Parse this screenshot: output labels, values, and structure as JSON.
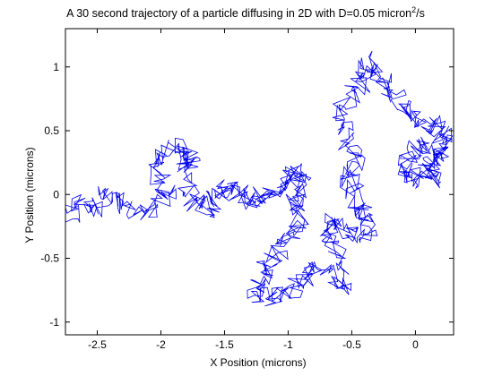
{
  "chart_data": {
    "type": "line",
    "title": "A 30 second trajectory of a particle diffusing in 2D with D=0.05 micron",
    "title_superscript": "2",
    "title_suffix": "/s",
    "xlabel": "X Position (microns)",
    "ylabel": "Y Position (microns)",
    "xlim": [
      -2.75,
      0.3
    ],
    "ylim": [
      -1.1,
      1.3
    ],
    "xticks": [
      -2.5,
      -2,
      -1.5,
      -1,
      -0.5,
      0
    ],
    "xtick_labels": [
      "-2.5",
      "-2",
      "-1.5",
      "-1",
      "-0.5",
      "0"
    ],
    "yticks": [
      -1,
      -0.5,
      0,
      0.5,
      1
    ],
    "ytick_labels": [
      "-1",
      "-0.5",
      "0",
      "0.5",
      "1"
    ],
    "grid": false,
    "line_color": "#0000ee",
    "series": [
      {
        "points_approx": [
          [
            -2.75,
            -0.18
          ],
          [
            -2.62,
            -0.05
          ],
          [
            -2.5,
            -0.12
          ],
          [
            -2.4,
            0.02
          ],
          [
            -2.3,
            -0.08
          ],
          [
            -2.15,
            -0.15
          ],
          [
            -2.0,
            -0.05
          ],
          [
            -1.95,
            0.05
          ],
          [
            -2.05,
            0.18
          ],
          [
            -1.95,
            0.33
          ],
          [
            -1.85,
            0.38
          ],
          [
            -1.8,
            0.22
          ],
          [
            -1.75,
            0.32
          ],
          [
            -1.8,
            0.1
          ],
          [
            -1.75,
            -0.05
          ],
          [
            -1.65,
            -0.1
          ],
          [
            -1.55,
            -0.02
          ],
          [
            -1.5,
            0.05
          ],
          [
            -1.4,
            0.02
          ],
          [
            -1.3,
            -0.05
          ],
          [
            -1.2,
            0.0
          ],
          [
            -1.1,
            0.03
          ],
          [
            -1.0,
            0.1
          ],
          [
            -0.95,
            0.2
          ],
          [
            -0.9,
            0.1
          ],
          [
            -0.95,
            -0.05
          ],
          [
            -0.9,
            -0.15
          ],
          [
            -0.95,
            -0.3
          ],
          [
            -1.05,
            -0.4
          ],
          [
            -1.15,
            -0.55
          ],
          [
            -1.2,
            -0.65
          ],
          [
            -1.28,
            -0.75
          ],
          [
            -1.15,
            -0.82
          ],
          [
            -1.0,
            -0.78
          ],
          [
            -0.9,
            -0.7
          ],
          [
            -0.8,
            -0.6
          ],
          [
            -0.65,
            -0.62
          ],
          [
            -0.58,
            -0.75
          ],
          [
            -0.6,
            -0.45
          ],
          [
            -0.7,
            -0.3
          ],
          [
            -0.65,
            -0.22
          ],
          [
            -0.55,
            -0.28
          ],
          [
            -0.45,
            -0.32
          ],
          [
            -0.35,
            -0.25
          ],
          [
            -0.4,
            -0.15
          ],
          [
            -0.45,
            -0.05
          ],
          [
            -0.52,
            0.05
          ],
          [
            -0.5,
            0.18
          ],
          [
            -0.45,
            0.3
          ],
          [
            -0.55,
            0.45
          ],
          [
            -0.6,
            0.62
          ],
          [
            -0.52,
            0.78
          ],
          [
            -0.4,
            0.9
          ],
          [
            -0.35,
            1.05
          ],
          [
            -0.28,
            0.92
          ],
          [
            -0.2,
            0.8
          ],
          [
            -0.1,
            0.68
          ],
          [
            0.0,
            0.6
          ],
          [
            0.12,
            0.55
          ],
          [
            0.2,
            0.48
          ],
          [
            0.28,
            0.45
          ],
          [
            0.18,
            0.32
          ],
          [
            0.1,
            0.2
          ],
          [
            0.0,
            0.12
          ],
          [
            -0.1,
            0.18
          ],
          [
            -0.05,
            0.3
          ],
          [
            0.05,
            0.4
          ],
          [
            0.15,
            0.3
          ],
          [
            0.1,
            0.18
          ],
          [
            0.2,
            0.1
          ]
        ]
      }
    ]
  }
}
